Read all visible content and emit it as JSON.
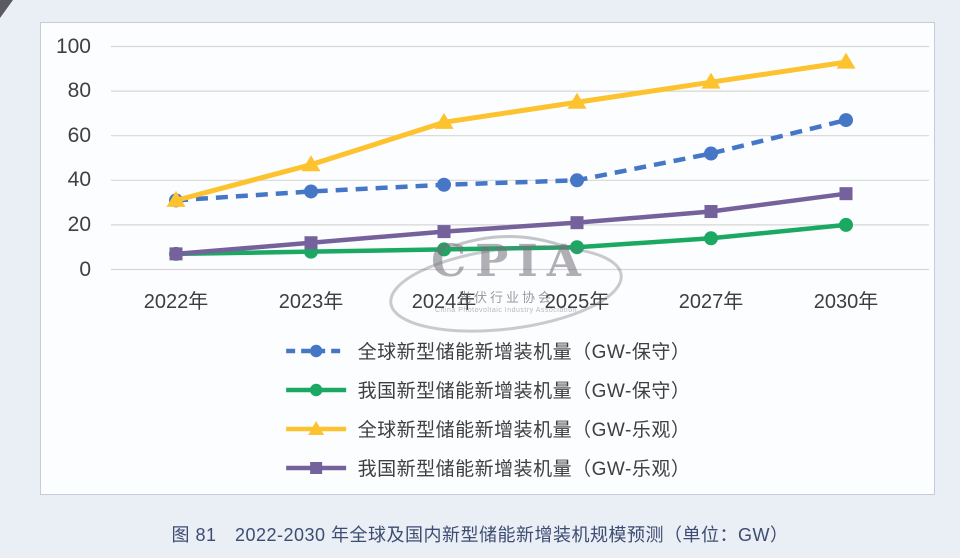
{
  "page": {
    "background": "#eaeef5",
    "caption": "图 81　2022-2030 年全球及国内新型储能新增装机规模预测（单位：GW）"
  },
  "watermark": {
    "acronym": "CPIA",
    "cn_text": "光伏行业协会",
    "en_text": "China Photovoltaic Industry Association"
  },
  "chart_data": {
    "type": "line",
    "title": "",
    "xlabel": "",
    "ylabel": "",
    "categories": [
      "2022年",
      "2023年",
      "2024年",
      "2025年",
      "2027年",
      "2030年"
    ],
    "series": [
      {
        "name": "全球新型储能新增装机量（GW-保守）",
        "values": [
          31,
          35,
          38,
          40,
          52,
          67
        ],
        "color": "#4577c6",
        "marker": "circle",
        "dash": true
      },
      {
        "name": "我国新型储能新增装机量（GW-保守）",
        "values": [
          7,
          8,
          9,
          10,
          14,
          20
        ],
        "color": "#1aa863",
        "marker": "circle",
        "dash": false
      },
      {
        "name": "全球新型储能新增装机量（GW-乐观）",
        "values": [
          31,
          47,
          66,
          75,
          84,
          93
        ],
        "color": "#fdc32e",
        "marker": "triangle",
        "dash": false
      },
      {
        "name": "我国新型储能新增装机量（GW-乐观）",
        "values": [
          7,
          12,
          17,
          21,
          26,
          34
        ],
        "color": "#75619b",
        "marker": "square",
        "dash": false
      }
    ],
    "ylim": [
      0,
      100
    ],
    "yticks": [
      0,
      20,
      40,
      60,
      80,
      100
    ],
    "grid": true,
    "gridline_color": "#d7d7d7",
    "legend_position": "bottom"
  }
}
